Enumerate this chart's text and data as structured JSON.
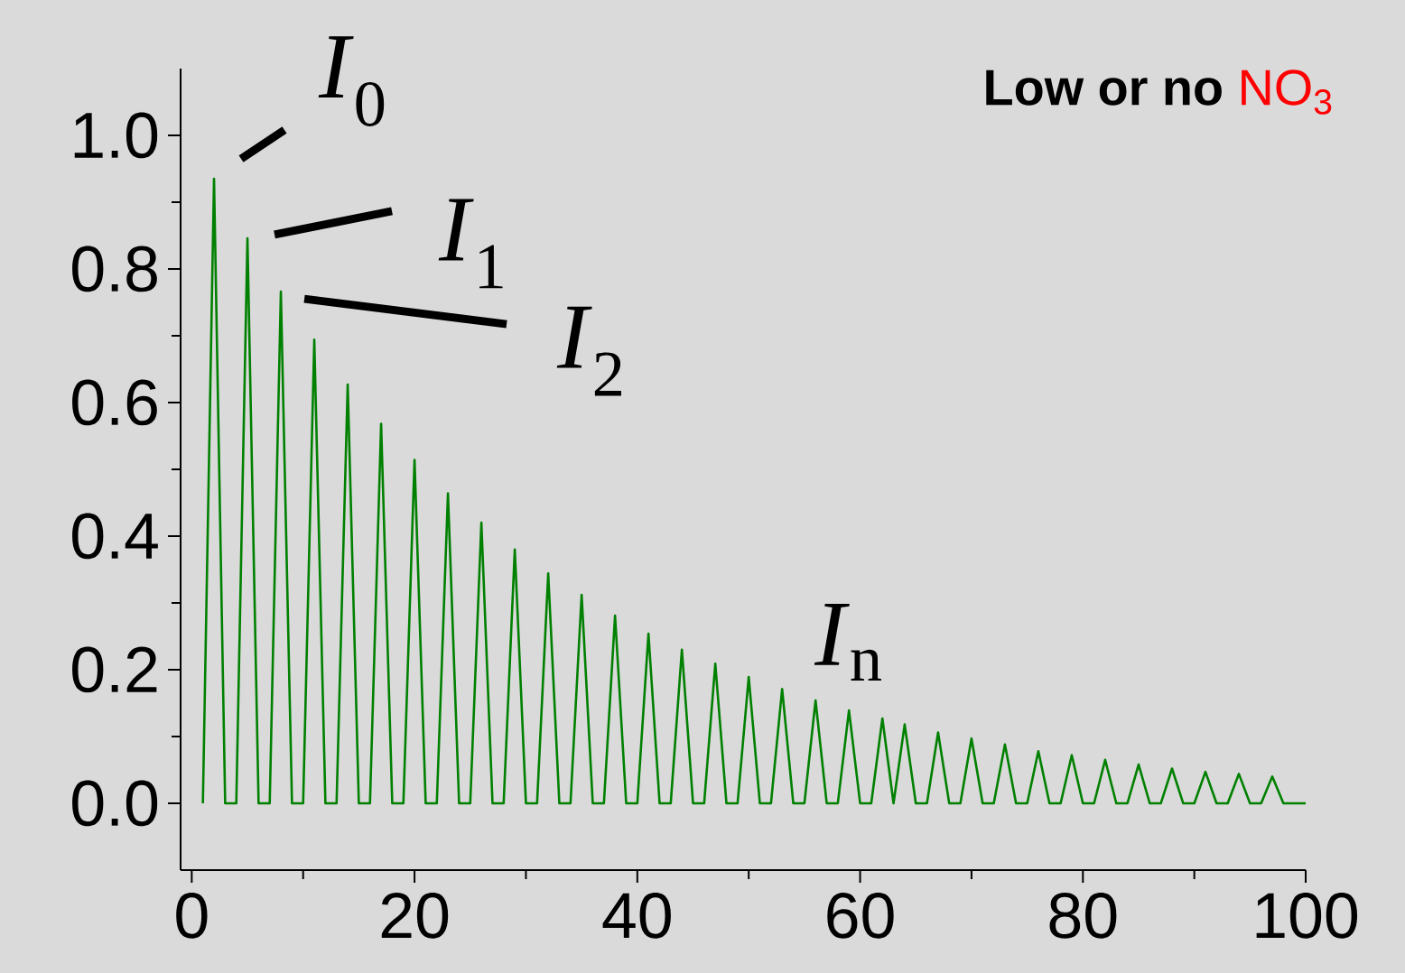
{
  "chart_data": {
    "type": "line",
    "title": "Low or no",
    "color": "#008000",
    "marker": "none",
    "line_style": "solid",
    "x": [
      1,
      2,
      3,
      4,
      5,
      6,
      7,
      8,
      9,
      10,
      11,
      12,
      13,
      14,
      15,
      16,
      17,
      18,
      19,
      20,
      21,
      22,
      23,
      24,
      25,
      26,
      27,
      28,
      29,
      30,
      31,
      32,
      33,
      34,
      35,
      36,
      37,
      38,
      39,
      40,
      41,
      42,
      43,
      44,
      45,
      46,
      47,
      48,
      49,
      50,
      51,
      52,
      53,
      54,
      55,
      56,
      57,
      58,
      59,
      60,
      61,
      62,
      63,
      64,
      65,
      66,
      67,
      68,
      69,
      70,
      71,
      72,
      73,
      74,
      75,
      76,
      77,
      78,
      79,
      80,
      81,
      82,
      83,
      84,
      85,
      86,
      87,
      88,
      89,
      90,
      91,
      92,
      93,
      94,
      95,
      96,
      97,
      98,
      100
    ],
    "values": [
      0,
      0.935,
      0,
      0,
      0.846,
      0,
      0,
      0.766,
      0,
      0,
      0.694,
      0,
      0,
      0.627,
      0,
      0,
      0.568,
      0,
      0,
      0.514,
      0,
      0,
      0.464,
      0,
      0,
      0.42,
      0,
      0,
      0.38,
      0,
      0,
      0.344,
      0,
      0,
      0.312,
      0,
      0,
      0.281,
      0,
      0,
      0.254,
      0,
      0,
      0.23,
      0,
      0,
      0.209,
      0,
      0,
      0.189,
      0,
      0,
      0.171,
      0,
      0,
      0.154,
      0,
      0,
      0.139,
      0,
      0,
      0.127,
      0,
      0.118,
      0,
      0,
      0.106,
      0,
      0,
      0.097,
      0,
      0,
      0.088,
      0,
      0,
      0.078,
      0,
      0,
      0.072,
      0,
      0,
      0.065,
      0,
      0,
      0.058,
      0,
      0,
      0.052,
      0,
      0,
      0.047,
      0,
      0,
      0.044,
      0,
      0,
      0.04,
      0,
      0
    ],
    "xlim": [
      -1,
      100
    ],
    "ylim": [
      -0.1,
      1.1
    ],
    "xticks": [
      0,
      20,
      40,
      60,
      80,
      100
    ],
    "yticks": [
      {
        "value": 0,
        "label": "0.0"
      },
      0.2,
      0.4,
      0.6,
      0.8,
      {
        "value": 1,
        "label": "1.0"
      }
    ],
    "annotations": [
      {
        "text": "*I*$_{0}$",
        "x": 2,
        "y": 0.935
      },
      {
        "text": "*I*$_{1}$",
        "x": 5,
        "y": 0.846
      },
      {
        "text": "*I*$_{2}$",
        "x": 8,
        "y": 0.766
      },
      {
        "text": "*I*$_{n}$",
        "x": 53,
        "y": 0.171
      },
      "NO$_{3}$"
    ]
  }
}
